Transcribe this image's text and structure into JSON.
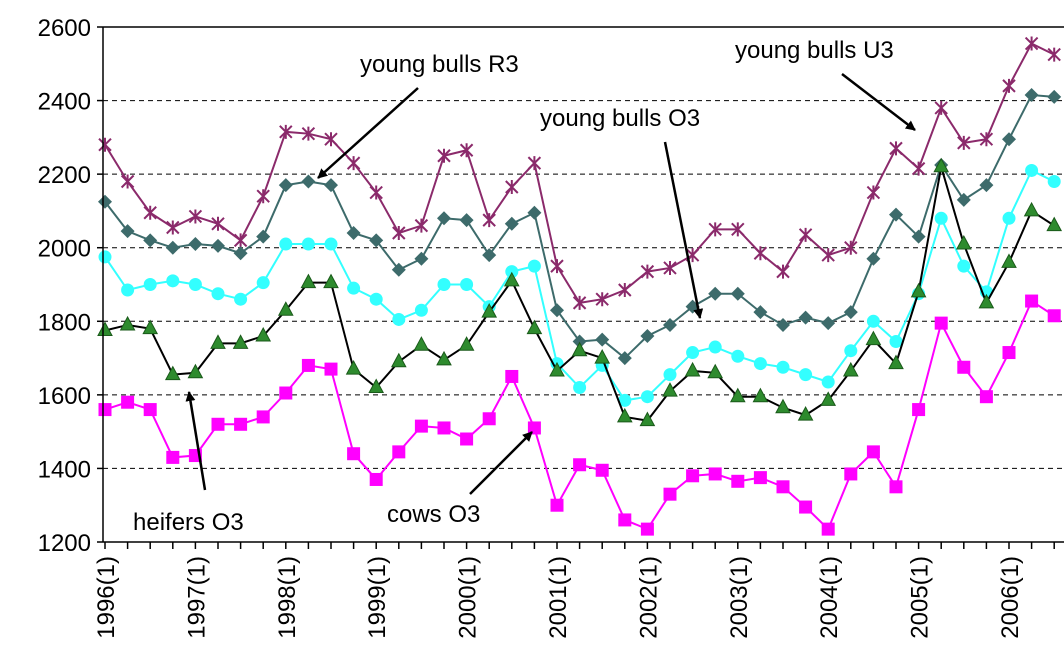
{
  "chart_data": {
    "type": "line",
    "categories": [
      "1996(1)",
      null,
      null,
      null,
      "1997(1)",
      null,
      null,
      null,
      "1998(1)",
      null,
      null,
      null,
      "1999(1)",
      null,
      null,
      null,
      "2000(1)",
      null,
      null,
      null,
      "2001(1)",
      null,
      null,
      null,
      "2002(1)",
      null,
      null,
      null,
      "2003(1)",
      null,
      null,
      null,
      "2004(1)",
      null,
      null,
      null,
      "2005(1)",
      null,
      null,
      null,
      "2006(1)",
      null,
      null
    ],
    "ylim": [
      1200,
      2600
    ],
    "yticks": [
      1200,
      1400,
      1600,
      1800,
      2000,
      2200,
      2400,
      2600
    ],
    "grid": true,
    "series": [
      {
        "name": "young bulls U3",
        "color": "#8b2a6b",
        "marker": "star",
        "values": [
          2280,
          2180,
          2095,
          2055,
          2085,
          2065,
          2020,
          2140,
          2315,
          2310,
          2295,
          2230,
          2150,
          2040,
          2060,
          2250,
          2265,
          2075,
          2165,
          2230,
          1950,
          1850,
          1860,
          1885,
          1935,
          1945,
          1980,
          2050,
          2050,
          1985,
          1935,
          2035,
          1980,
          2000,
          2150,
          2270,
          2215,
          2380,
          2285,
          2295,
          2440,
          2555,
          2525
        ]
      },
      {
        "name": "young bulls R3",
        "color": "#3d6b6b",
        "marker": "diamond",
        "values": [
          2125,
          2045,
          2020,
          2000,
          2010,
          2005,
          1985,
          2030,
          2170,
          2180,
          2170,
          2040,
          2020,
          1940,
          1970,
          2080,
          2075,
          1980,
          2065,
          2095,
          1830,
          1745,
          1750,
          1700,
          1760,
          1790,
          1840,
          1875,
          1875,
          1825,
          1790,
          1810,
          1795,
          1825,
          1970,
          2090,
          2030,
          2225,
          2130,
          2170,
          2295,
          2415,
          2410
        ]
      },
      {
        "name": "young bulls O3",
        "color": "#33ffff",
        "marker": "circle",
        "values": [
          1975,
          1885,
          1900,
          1910,
          1900,
          1875,
          1860,
          1905,
          2010,
          2010,
          2010,
          1890,
          1860,
          1805,
          1830,
          1900,
          1900,
          1840,
          1935,
          1950,
          1685,
          1620,
          1680,
          1585,
          1595,
          1655,
          1715,
          1730,
          1705,
          1685,
          1675,
          1655,
          1635,
          1720,
          1800,
          1745,
          1875,
          2080,
          1950,
          1880,
          2080,
          2210,
          2180
        ]
      },
      {
        "name": "heifers O3",
        "color": "#2e8b2e",
        "line_color": "#000000",
        "marker": "triangle",
        "values": [
          1775,
          1790,
          1780,
          1655,
          1660,
          1740,
          1740,
          1760,
          1830,
          1905,
          1905,
          1670,
          1620,
          1690,
          1735,
          1695,
          1735,
          1825,
          1910,
          1780,
          1665,
          1720,
          1700,
          1540,
          1530,
          1610,
          1665,
          1660,
          1595,
          1595,
          1565,
          1545,
          1585,
          1665,
          1750,
          1685,
          1880,
          2220,
          2010,
          1850,
          1960,
          2100,
          2060
        ]
      },
      {
        "name": "cows O3",
        "color": "#ff00ff",
        "marker": "square",
        "values": [
          1560,
          1580,
          1560,
          1430,
          1435,
          1520,
          1520,
          1540,
          1605,
          1680,
          1670,
          1440,
          1370,
          1445,
          1515,
          1510,
          1480,
          1535,
          1650,
          1510,
          1300,
          1410,
          1395,
          1260,
          1235,
          1330,
          1380,
          1385,
          1365,
          1375,
          1350,
          1295,
          1235,
          1385,
          1445,
          1350,
          1560,
          1795,
          1675,
          1595,
          1715,
          1855,
          1815
        ]
      }
    ]
  }
}
